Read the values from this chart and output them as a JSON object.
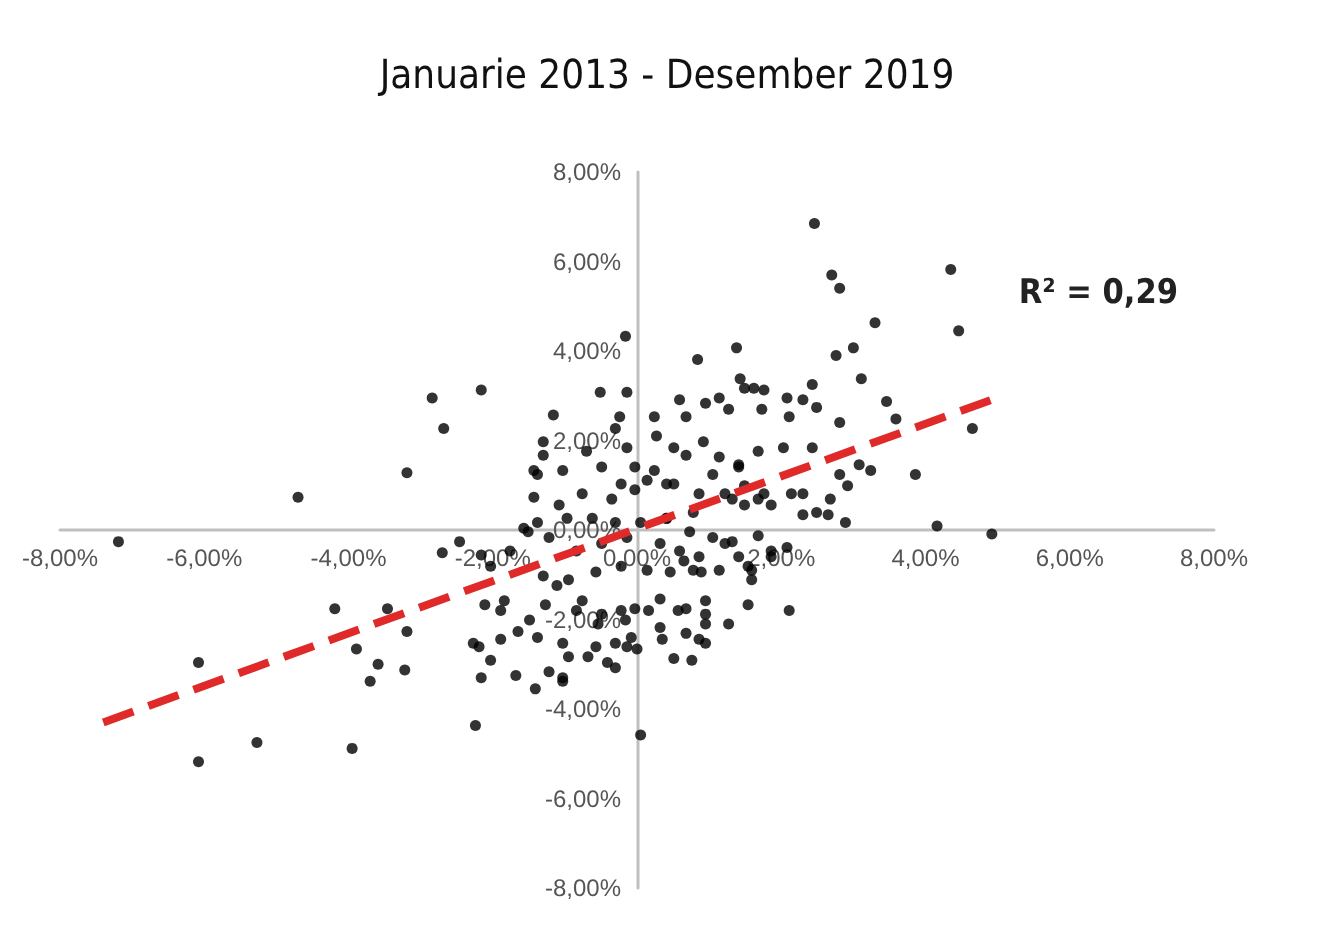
{
  "chart_data": {
    "type": "scatter",
    "title": "Januarie 2013 - Desember 2019",
    "annotations": [
      "R² = 0,29"
    ],
    "xlim": [
      -8,
      8
    ],
    "ylim": [
      -8,
      8
    ],
    "xticks": [
      {
        "value": -8,
        "label": "-8,00%"
      },
      {
        "value": -6,
        "label": "-6,00%"
      },
      {
        "value": -4,
        "label": "-4,00%"
      },
      {
        "value": -2,
        "label": "-2,00%"
      },
      {
        "value": 0,
        "label": "0,00%"
      },
      {
        "value": 2,
        "label": "2,00%"
      },
      {
        "value": 4,
        "label": "4,00%"
      },
      {
        "value": 6,
        "label": "6,00%"
      },
      {
        "value": 8,
        "label": "8,00%"
      }
    ],
    "yticks": [
      {
        "value": -8,
        "label": "-8,00%"
      },
      {
        "value": -6,
        "label": "-6,00%"
      },
      {
        "value": -4,
        "label": "-4,00%"
      },
      {
        "value": -2,
        "label": "-2,00%"
      },
      {
        "value": 0,
        "label": "0,00%"
      },
      {
        "value": 2,
        "label": "2,00%"
      },
      {
        "value": 4,
        "label": "4,00%"
      },
      {
        "value": 6,
        "label": "6,00%"
      },
      {
        "value": 8,
        "label": "8,00%"
      }
    ],
    "grid": false,
    "marker": "circle",
    "series": [
      {
        "color": "#000000",
        "x": [
          -4.7,
          -3.19,
          -2.84,
          -2.68,
          -2.16,
          -0.16,
          -0.51,
          -0.14,
          -1.16,
          -0.24,
          -1.3,
          -1.38,
          -1.43,
          -1.08,
          -7.19,
          -6.08,
          -6.08,
          -5.27,
          -3.95,
          -4.19,
          -3.89,
          -3.7,
          -3.59,
          -3.46,
          -3.19,
          -3.22,
          -2.7,
          -2.46,
          -2.16,
          -2.27,
          -2.16,
          -2.24,
          -2.03,
          -2.11,
          -1.89,
          -1.68,
          -1.65,
          -1.41,
          -1.22,
          -1.03,
          -0.95,
          -0.68,
          -0.41,
          -0.3,
          -1.03,
          -1.38,
          -1.27,
          -0.84,
          -0.54,
          -0.22,
          -1.57,
          -1.38,
          -1.11,
          0.05,
          4.16,
          4.92,
          2.89,
          2.65,
          2.3,
          2.11,
          2.08,
          1.86,
          1.68,
          1.54,
          1.59,
          1.54,
          1.27,
          0.95,
          0.86,
          0.76,
          0.51,
          0.35,
          0.0,
          -0.08,
          0.68,
          0.95,
          0.57,
          0.16,
          0.95,
          0.32,
          1.14,
          0.89,
          0.46,
          0.65,
          1.32,
          -0.16,
          2.46,
          2.7,
          2.81,
          4.35,
          4.46,
          3.3,
          3.0,
          2.76,
          3.11,
          1.38,
          0.84,
          1.43,
          1.49,
          1.62,
          1.76,
          2.43,
          2.08,
          2.3,
          2.49,
          3.46,
          3.59,
          4.65,
          3.86,
          3.24,
          3.08,
          2.92,
          2.81,
          2.43,
          2.03,
          1.68,
          1.41,
          1.14,
          0.92,
          0.59,
          0.68,
          0.95,
          1.14,
          1.27,
          1.73,
          2.11,
          2.3,
          2.68,
          0.51,
          0.24,
          0.27,
          -0.03,
          0.14,
          0.41,
          0.86,
          1.32,
          1.68,
          1.86,
          0.78,
          0.41,
          -1.3,
          -1.43,
          -1.03,
          -0.7,
          -0.49,
          -0.22,
          -0.35,
          -0.03,
          0.24,
          0.51,
          -0.76,
          -0.97,
          -0.62,
          -0.3,
          0.05,
          0.41,
          0.73,
          0.59,
          0.32,
          -0.14,
          -0.49,
          -0.84,
          -1.22,
          -1.51,
          -1.76,
          -2.03,
          -1.3,
          -0.95,
          -0.57,
          -0.22,
          0.14,
          0.78,
          0.86,
          1.05,
          1.22,
          1.41,
          1.59,
          1.86,
          1.22,
          1.49,
          1.76,
          1.05,
          1.41,
          0.68,
          -0.3,
          -0.14,
          -0.76,
          -0.49,
          -0.03,
          0.32,
          0.68,
          0.95,
          -1.49,
          -1.84,
          -2.19,
          -1.89,
          -0.57,
          -0.14,
          -1.03,
          -0.3,
          1.49,
          2.14,
          2.49,
          2.81
        ],
        "values": [
          0.73,
          1.28,
          2.95,
          2.27,
          3.13,
          4.33,
          3.08,
          3.08,
          2.57,
          2.53,
          1.67,
          1.24,
          0.73,
          0.56,
          -0.26,
          -2.96,
          -5.18,
          -4.75,
          -4.88,
          -1.76,
          -2.66,
          -3.38,
          -3.0,
          -1.76,
          -2.27,
          -3.13,
          -0.51,
          -0.26,
          -0.56,
          -2.53,
          -3.3,
          -4.37,
          -2.91,
          -1.67,
          -1.8,
          -3.25,
          -2.27,
          -3.55,
          -3.17,
          -3.38,
          -2.83,
          -2.83,
          -2.96,
          -2.53,
          -2.53,
          -2.4,
          -1.67,
          -1.8,
          -2.1,
          -1.8,
          0.04,
          0.17,
          -1.24,
          -4.58,
          0.09,
          -0.09,
          0.17,
          0.34,
          0.34,
          -1.8,
          -0.39,
          -0.47,
          -0.13,
          -0.81,
          -1.11,
          -1.67,
          -2.1,
          -2.53,
          -2.44,
          -2.91,
          -2.87,
          -2.44,
          -2.66,
          -2.4,
          -2.31,
          -2.1,
          -1.8,
          -1.8,
          -1.58,
          -1.54,
          -0.9,
          -0.94,
          -0.94,
          -0.69,
          -0.26,
          -2.01,
          6.85,
          5.7,
          5.4,
          5.82,
          4.45,
          4.63,
          4.07,
          3.9,
          3.38,
          4.07,
          3.81,
          3.38,
          3.17,
          3.17,
          3.13,
          3.25,
          2.95,
          2.91,
          2.74,
          2.87,
          2.48,
          2.27,
          1.24,
          1.33,
          1.46,
          0.99,
          2.4,
          1.84,
          1.84,
          1.76,
          1.46,
          1.63,
          1.97,
          2.91,
          2.53,
          2.83,
          2.95,
          2.7,
          2.7,
          2.53,
          0.81,
          0.69,
          1.84,
          2.53,
          2.1,
          1.41,
          1.11,
          1.03,
          0.81,
          0.69,
          0.69,
          0.56,
          0.39,
          0.26,
          1.97,
          1.33,
          1.33,
          1.76,
          1.41,
          1.03,
          0.69,
          0.9,
          1.33,
          1.03,
          0.81,
          0.26,
          0.26,
          0.17,
          0.17,
          0.26,
          -0.04,
          -0.47,
          -0.3,
          -0.17,
          -0.3,
          -0.47,
          -0.17,
          -0.04,
          -0.47,
          -0.81,
          -1.03,
          -1.11,
          -0.94,
          -0.81,
          -0.9,
          -0.9,
          -0.6,
          -0.17,
          -0.3,
          -0.6,
          -0.9,
          -0.6,
          0.81,
          0.56,
          0.81,
          1.24,
          1.41,
          1.67,
          2.27,
          1.84,
          -1.58,
          -1.88,
          -1.76,
          -2.18,
          -1.76,
          -1.88,
          -2.01,
          -1.58,
          -2.61,
          -2.44,
          -2.61,
          -2.61,
          -3.3,
          -3.08,
          0.99,
          0.81,
          0.39,
          1.24
        ]
      },
      {
        "type": "line",
        "color": "#e02a2a",
        "line_style": "dashed",
        "marker": "none",
        "x": [
          -7.4,
          4.9
        ],
        "values": [
          -4.3,
          2.9
        ]
      }
    ]
  }
}
